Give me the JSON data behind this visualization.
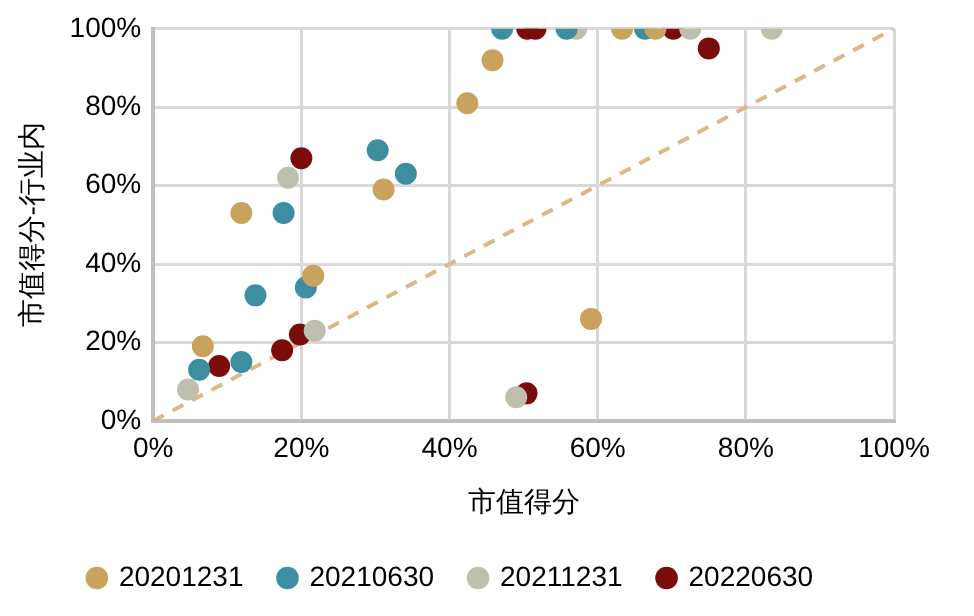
{
  "chart_data": {
    "type": "scatter",
    "xlabel": "市值得分",
    "ylabel": "市值得分-行业内",
    "xlim": [
      0,
      100
    ],
    "ylim": [
      0,
      100
    ],
    "xticks": [
      {
        "value": 0,
        "label": "0%"
      },
      {
        "value": 20,
        "label": "20%"
      },
      {
        "value": 40,
        "label": "40%"
      },
      {
        "value": 60,
        "label": "60%"
      },
      {
        "value": 80,
        "label": "80%"
      },
      {
        "value": 100,
        "label": "100%"
      }
    ],
    "yticks": [
      {
        "value": 0,
        "label": "0%"
      },
      {
        "value": 20,
        "label": "20%"
      },
      {
        "value": 40,
        "label": "40%"
      },
      {
        "value": 60,
        "label": "60%"
      },
      {
        "value": 80,
        "label": "80%"
      },
      {
        "value": 100,
        "label": "100%"
      }
    ],
    "grid": true,
    "legend": "bottom",
    "marker": "circle",
    "series": [
      {
        "name": "20201231",
        "color": "#c9a35e",
        "x": [
          6.7,
          11.9,
          21.6,
          31.1,
          42.4,
          45.8,
          63.3,
          67.8,
          59.1
        ],
        "values": [
          19,
          53,
          37,
          59,
          81,
          92,
          100,
          100,
          26
        ]
      },
      {
        "name": "20210630",
        "color": "#3d8ea0",
        "x": [
          6.2,
          11.9,
          13.8,
          17.6,
          20.6,
          30.3,
          34.1,
          47.1,
          55.8,
          66.4
        ],
        "values": [
          13,
          15,
          32,
          53,
          34,
          69,
          63,
          100,
          100,
          100
        ]
      },
      {
        "name": "20211231",
        "color": "#bfbfae",
        "x": [
          4.7,
          18.2,
          21.8,
          49,
          57.1,
          72.5,
          83.5
        ],
        "values": [
          8,
          62,
          23,
          6,
          100,
          100,
          100
        ]
      },
      {
        "name": "20220630",
        "color": "#7a0c0c",
        "x": [
          8.9,
          17.4,
          19.8,
          20,
          50.4,
          50.5,
          51.6,
          70.2,
          75
        ],
        "values": [
          14,
          18,
          22,
          67,
          7,
          100,
          100,
          100,
          95
        ]
      },
      {
        "type": "line",
        "color": "#d9b98a",
        "line_style": "dashed",
        "marker": "none",
        "x": [
          0,
          100
        ],
        "values": [
          0,
          100
        ]
      }
    ]
  }
}
